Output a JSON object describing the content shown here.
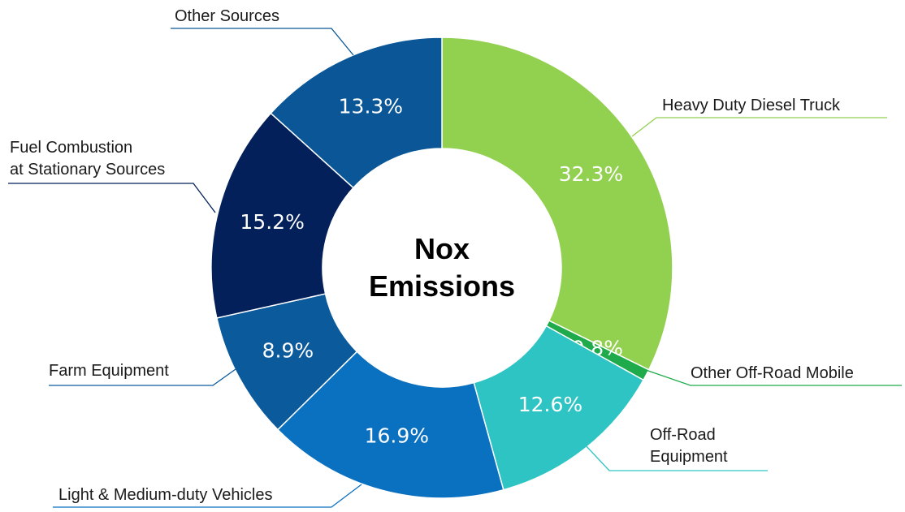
{
  "chart_data": {
    "type": "pie",
    "title": "Nox\nEmissions",
    "categories": [
      "Heavy Duty Diesel Truck",
      "Other Off-Road Mobile",
      "Off-Road\nEquipment",
      "Light & Medium-duty Vehicles",
      "Farm Equipment",
      "Fuel Combustion\nat Stationary Sources",
      "Other Sources"
    ],
    "values": [
      32.3,
      0.8,
      12.6,
      16.9,
      8.9,
      15.2,
      13.3
    ],
    "value_labels": [
      "32.3%",
      "0.8%",
      "12.6%",
      "16.9%",
      "8.9%",
      "15.2%",
      "13.3%"
    ],
    "colors": [
      "#92d050",
      "#1fab4b",
      "#2fc4c4",
      "#0a70c0",
      "#0b5a9c",
      "#03205a",
      "#0a5696"
    ]
  }
}
